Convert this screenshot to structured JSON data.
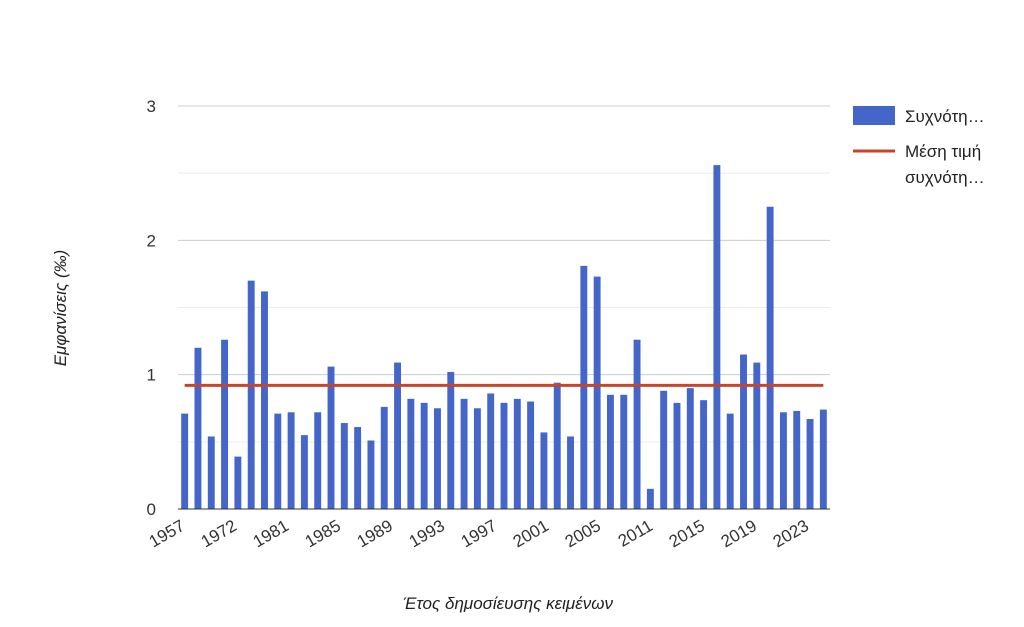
{
  "chart_data": {
    "type": "bar",
    "title": "",
    "xlabel": "Έτος δημοσίευσης κειμένων",
    "ylabel": "Εμφανίσεις (‰)",
    "ylim": [
      0,
      3
    ],
    "yticks": [
      "0",
      "1",
      "2",
      "3"
    ],
    "grid": true,
    "legend_position": "right",
    "xtick_labels": [
      "1957",
      "1972",
      "1981",
      "1985",
      "1989",
      "1993",
      "1997",
      "2001",
      "2005",
      "2011",
      "2015",
      "2019",
      "2023"
    ],
    "series": [
      {
        "name": "Συχνότη…",
        "kind": "bar",
        "color": "#4566c9",
        "values": [
          0.71,
          1.2,
          0.54,
          1.26,
          0.39,
          1.7,
          1.62,
          0.71,
          0.72,
          0.55,
          0.72,
          1.06,
          0.64,
          0.61,
          0.51,
          0.76,
          1.09,
          0.82,
          0.79,
          0.75,
          1.02,
          0.82,
          0.75,
          0.86,
          0.79,
          0.82,
          0.8,
          0.57,
          0.94,
          0.54,
          1.81,
          1.73,
          0.85,
          0.85,
          1.26,
          0.15,
          0.88,
          0.79,
          0.9,
          0.81,
          2.56,
          0.71,
          1.15,
          1.09,
          2.25,
          0.72,
          0.73,
          0.67,
          0.74
        ]
      },
      {
        "name": "Μέση τιμή συχνότη…",
        "legend_lines": [
          "Μέση τιμή",
          "συχνότη…"
        ],
        "kind": "line",
        "color": "#c9452a",
        "value": 0.92
      }
    ]
  }
}
